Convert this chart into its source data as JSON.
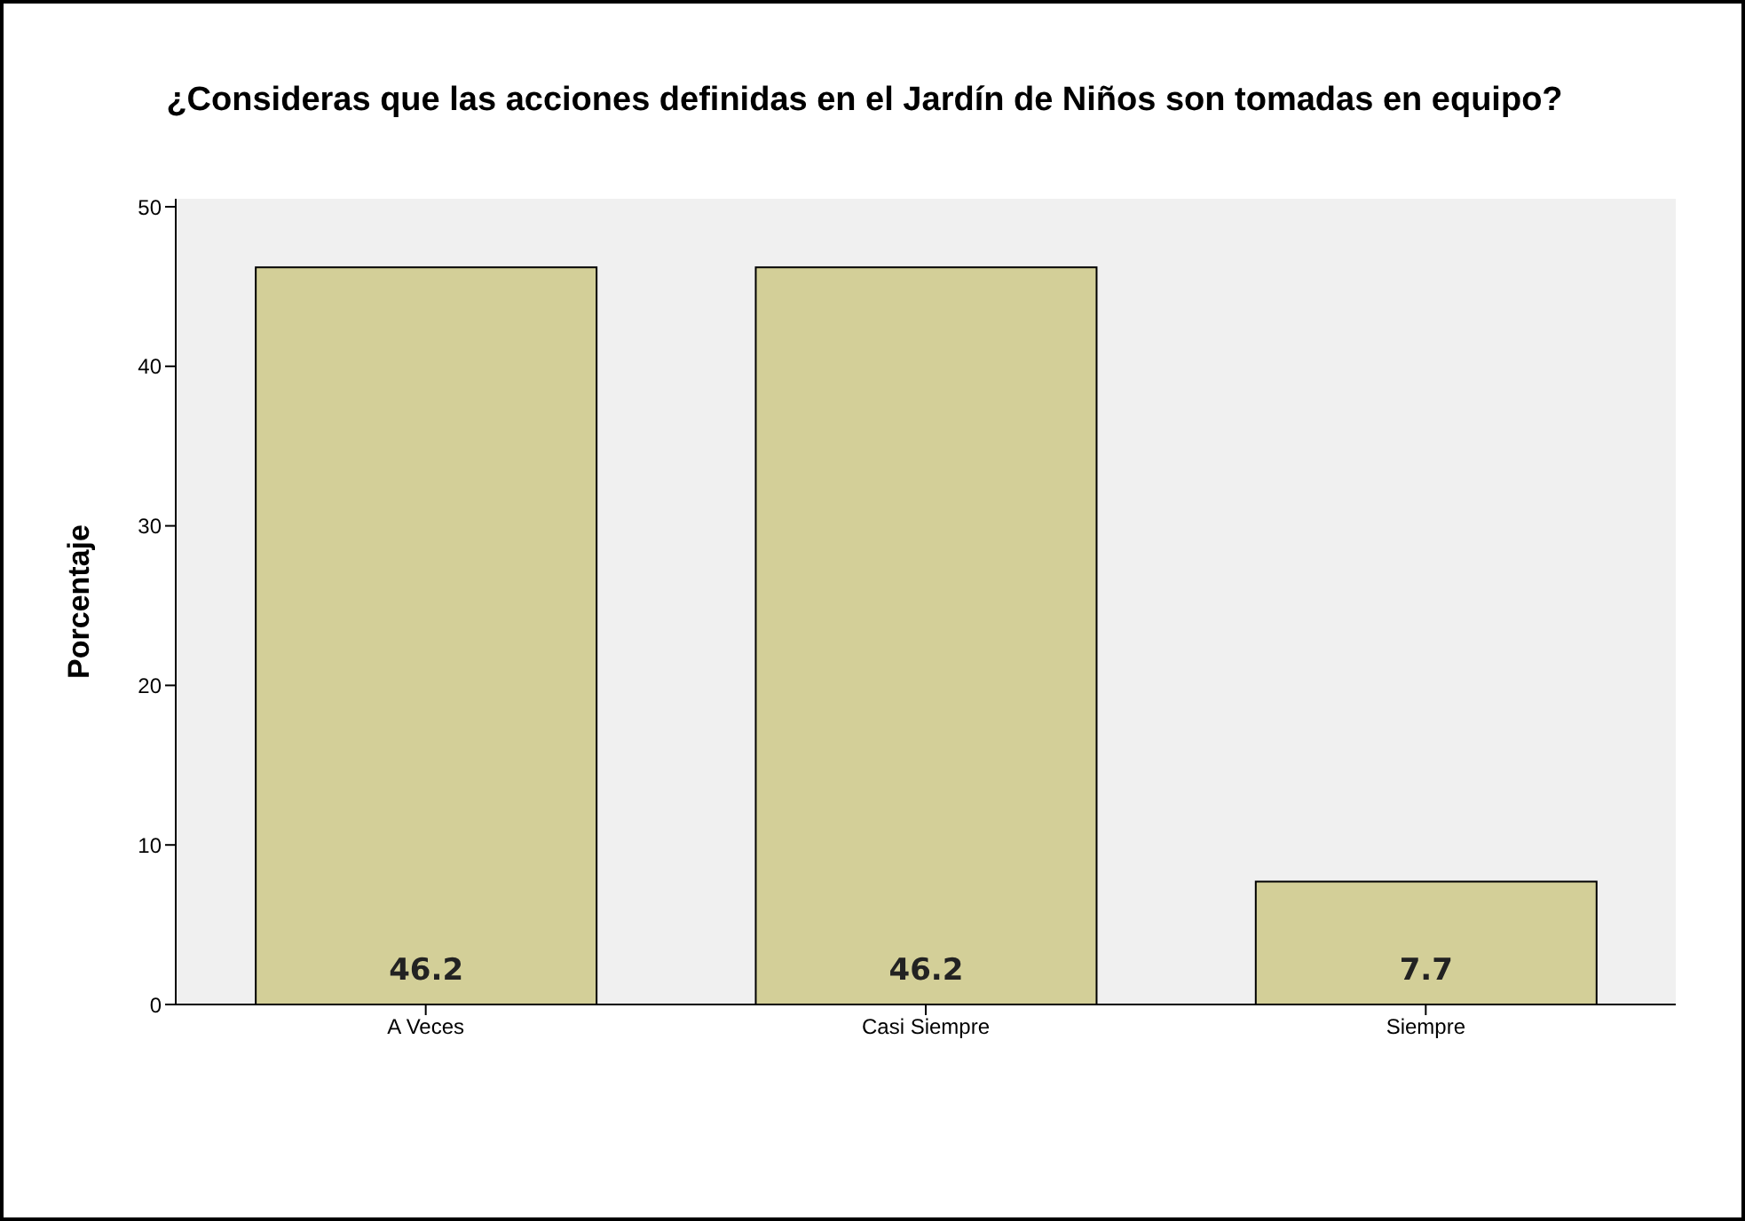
{
  "chart_data": {
    "type": "bar",
    "title": "¿Consideras que las acciones definidas en el Jardín de Niños son tomadas en equipo?",
    "ylabel": "Porcentaje",
    "categories": [
      "A Veces",
      "Casi Siempre",
      "Siempre"
    ],
    "values": [
      46.2,
      46.2,
      7.7
    ],
    "color": "#d3cf98",
    "ylim": [
      0,
      50.5
    ],
    "yticks": [
      0,
      10,
      20,
      30,
      40,
      50
    ],
    "data_labels": true,
    "grid": false,
    "legend": false
  }
}
